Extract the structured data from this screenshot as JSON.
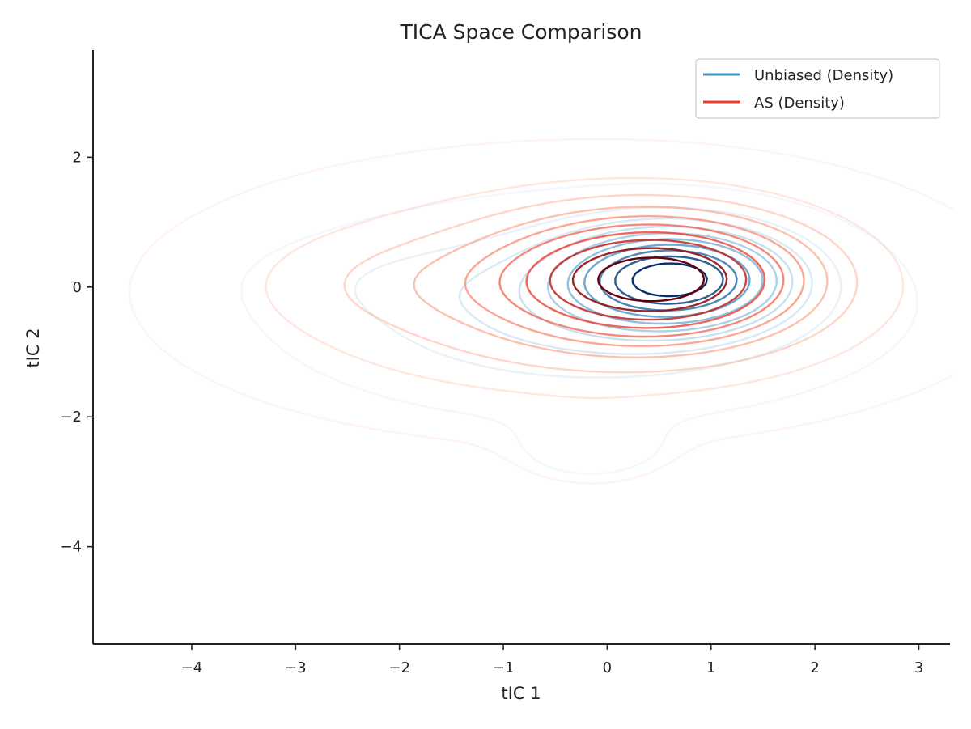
{
  "chart_data": {
    "type": "contour",
    "title": "TICA Space Comparison",
    "xlabel": "tIC 1",
    "ylabel": "tIC 2",
    "xlim": [
      -4.95,
      3.3
    ],
    "ylim": [
      -5.5,
      3.65
    ],
    "xticks": [
      -4,
      -3,
      -2,
      -1,
      0,
      1,
      2,
      3
    ],
    "yticks": [
      -4,
      -2,
      0,
      2
    ],
    "xtick_labels": [
      "−4",
      "−3",
      "−2",
      "−1",
      "0",
      "1",
      "2",
      "3"
    ],
    "ytick_labels": [
      "−4",
      "−2",
      "0",
      "2"
    ],
    "grid": false,
    "legend_position": "top-right",
    "series": [
      {
        "name": "Unbiased (Density)",
        "color": "#4292c6",
        "colormap": "Blues",
        "modes": [
          {
            "center": [
              0.65,
              0.15
            ],
            "sigma": [
              0.7,
              0.5
            ],
            "weight": 1.0
          },
          {
            "center": [
              -0.2,
              -0.3
            ],
            "sigma": [
              1.6,
              0.9
            ],
            "weight": 0.35
          },
          {
            "center": [
              -0.15,
              -2.5
            ],
            "sigma": [
              0.5,
              0.35
            ],
            "weight": 0.08
          },
          {
            "center": [
              -2.2,
              0.1
            ],
            "sigma": [
              0.8,
              0.4
            ],
            "weight": 0.05
          }
        ]
      },
      {
        "name": "AS (Density)",
        "color": "#ef3b2c",
        "colormap": "Reds",
        "modes": [
          {
            "center": [
              0.5,
              0.15
            ],
            "sigma": [
              0.95,
              0.65
            ],
            "weight": 1.0
          },
          {
            "center": [
              -0.3,
              -0.1
            ],
            "sigma": [
              2.1,
              1.15
            ],
            "weight": 0.45
          },
          {
            "center": [
              -0.15,
              -2.5
            ],
            "sigma": [
              0.45,
              0.35
            ],
            "weight": 0.12
          },
          {
            "center": [
              -2.0,
              0.1
            ],
            "sigma": [
              0.9,
              0.45
            ],
            "weight": 0.08
          }
        ]
      }
    ]
  }
}
